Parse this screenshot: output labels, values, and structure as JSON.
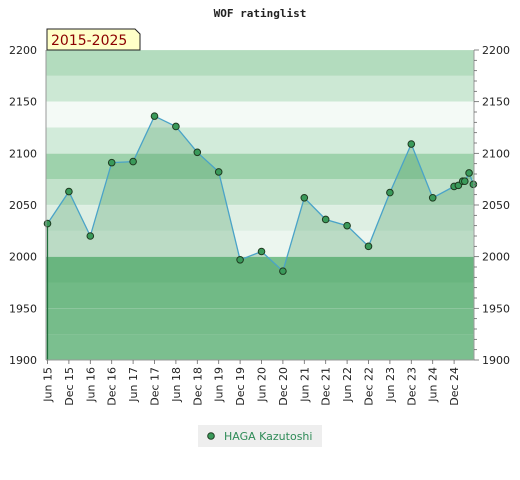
{
  "chart_data": {
    "type": "area",
    "title": "WOF ratinglist",
    "period_badge": "2015-2025",
    "xlabel": "",
    "ylabel": "",
    "ylim": [
      1900,
      2200
    ],
    "yticks": [
      1900,
      1950,
      2000,
      2050,
      2100,
      2150,
      2200
    ],
    "x_tick_labels": [
      "Jun 15",
      "Dec 15",
      "Jun 16",
      "Dec 16",
      "Jun 17",
      "Dec 17",
      "Jun 18",
      "Dec 18",
      "Jun 19",
      "Dec 19",
      "Jun 20",
      "Dec 20",
      "Jun 21",
      "Dec 21",
      "Jun 22",
      "Dec 22",
      "Jun 23",
      "Dec 23",
      "Jun 24",
      "Dec 24"
    ],
    "grid": true,
    "legend_position": "bottom-center",
    "series": [
      {
        "name": "HAGA Kazutoshi",
        "color": "#4aa3c8",
        "marker_color": "#3a9a5a",
        "points": [
          {
            "t": 0.0,
            "v": 2032
          },
          {
            "t": 1.0,
            "v": 2063
          },
          {
            "t": 2.0,
            "v": 2020
          },
          {
            "t": 3.0,
            "v": 2091
          },
          {
            "t": 4.0,
            "v": 2092
          },
          {
            "t": 5.0,
            "v": 2136
          },
          {
            "t": 6.0,
            "v": 2126
          },
          {
            "t": 7.0,
            "v": 2101
          },
          {
            "t": 8.0,
            "v": 2082
          },
          {
            "t": 9.0,
            "v": 1997
          },
          {
            "t": 10.0,
            "v": 2005
          },
          {
            "t": 11.0,
            "v": 1986
          },
          {
            "t": 12.0,
            "v": 2057
          },
          {
            "t": 13.0,
            "v": 2036
          },
          {
            "t": 14.0,
            "v": 2030
          },
          {
            "t": 15.0,
            "v": 2010
          },
          {
            "t": 16.0,
            "v": 2062
          },
          {
            "t": 17.0,
            "v": 2109
          },
          {
            "t": 18.0,
            "v": 2057
          },
          {
            "t": 19.0,
            "v": 2068
          },
          {
            "t": 19.2,
            "v": 2069
          },
          {
            "t": 19.4,
            "v": 2073
          },
          {
            "t": 19.5,
            "v": 2073
          },
          {
            "t": 19.7,
            "v": 2081
          },
          {
            "t": 19.9,
            "v": 2070
          }
        ]
      }
    ],
    "bands": [
      {
        "from": 1900,
        "to": 1925,
        "color": "#94cfa4"
      },
      {
        "from": 1925,
        "to": 1950,
        "color": "#8ccb9d"
      },
      {
        "from": 1950,
        "to": 1975,
        "color": "#86c897"
      },
      {
        "from": 1975,
        "to": 2000,
        "color": "#7bc18e"
      },
      {
        "from": 2000,
        "to": 2025,
        "color": "#ecf6ef"
      },
      {
        "from": 2025,
        "to": 2050,
        "color": "#deefe3"
      },
      {
        "from": 2050,
        "to": 2075,
        "color": "#c2e2cb"
      },
      {
        "from": 2075,
        "to": 2100,
        "color": "#9ed2ac"
      },
      {
        "from": 2100,
        "to": 2125,
        "color": "#d2ebda"
      },
      {
        "from": 2125,
        "to": 2150,
        "color": "#f4faf6"
      },
      {
        "from": 2150,
        "to": 2175,
        "color": "#cce8d4"
      },
      {
        "from": 2175,
        "to": 2200,
        "color": "#b3dcbe"
      }
    ]
  }
}
